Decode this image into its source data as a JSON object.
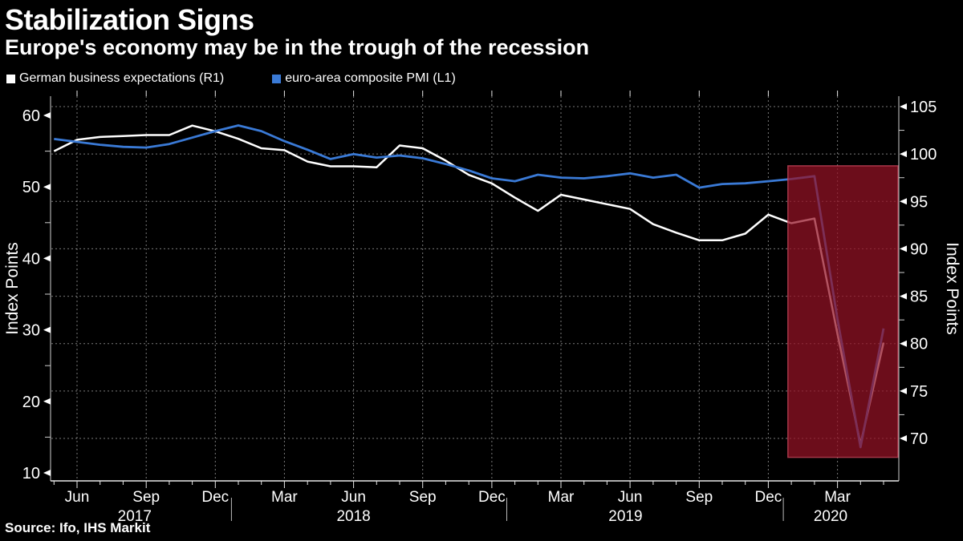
{
  "header": {
    "title": "Stabilization Signs",
    "subtitle": "Europe's economy may be in the trough of the recession"
  },
  "legend": {
    "items": [
      {
        "label": "German business expectations (R1)",
        "color": "#FFFFFF"
      },
      {
        "label": "euro-area composite PMI (L1)",
        "color": "#3A7AD6"
      }
    ]
  },
  "source": {
    "text": "Source: Ifo, IHS Markit"
  },
  "chart_data": {
    "type": "line",
    "x": [
      "May 2017",
      "Jun 2017",
      "Jul 2017",
      "Aug 2017",
      "Sep 2017",
      "Oct 2017",
      "Nov 2017",
      "Dec 2017",
      "Jan 2018",
      "Feb 2018",
      "Mar 2018",
      "Apr 2018",
      "May 2018",
      "Jun 2018",
      "Jul 2018",
      "Aug 2018",
      "Sep 2018",
      "Oct 2018",
      "Nov 2018",
      "Dec 2018",
      "Jan 2019",
      "Feb 2019",
      "Mar 2019",
      "Apr 2019",
      "May 2019",
      "Jun 2019",
      "Jul 2019",
      "Aug 2019",
      "Sep 2019",
      "Oct 2019",
      "Nov 2019",
      "Dec 2019",
      "Jan 2020",
      "Feb 2020",
      "Mar 2020",
      "Apr 2020",
      "May 2020"
    ],
    "series": [
      {
        "name": "German business expectations",
        "axis_code": "R1",
        "axis": "right",
        "color": "#FFFFFF",
        "values": [
          100.3,
          101.5,
          101.8,
          101.9,
          102,
          102,
          103,
          102.4,
          101.6,
          100.6,
          100.4,
          99.2,
          98.7,
          98.7,
          98.6,
          100.9,
          100.6,
          99.3,
          97.8,
          96.9,
          95.4,
          94,
          95.7,
          95.2,
          94.7,
          94.2,
          92.6,
          91.7,
          90.9,
          90.9,
          91.6,
          93.6,
          92.7,
          93.2,
          81,
          69.4,
          80.1
        ]
      },
      {
        "name": "euro-area composite PMI",
        "axis_code": "L1",
        "axis": "left",
        "color": "#3A7AD6",
        "values": [
          56.7,
          56.3,
          55.9,
          55.6,
          55.5,
          56,
          56.9,
          57.8,
          58.6,
          57.8,
          56.4,
          55.2,
          53.9,
          54.6,
          54.1,
          54.4,
          54,
          53.2,
          52.3,
          51.2,
          50.8,
          51.7,
          51.3,
          51.2,
          51.5,
          51.9,
          51.3,
          51.7,
          49.9,
          50.4,
          50.5,
          50.8,
          51.1,
          51.5,
          31.5,
          13.6,
          30.2
        ]
      }
    ],
    "left_axis": {
      "title": "Index Points",
      "major_ticks": [
        10,
        20,
        30,
        40,
        50,
        60
      ],
      "minor_ticks": [
        15,
        25,
        35,
        45,
        55
      ]
    },
    "right_axis": {
      "title": "Index Points",
      "major_ticks": [
        70,
        75,
        80,
        85,
        90,
        95,
        100,
        105
      ],
      "minor_ticks": [
        72.5,
        77.5,
        82.5,
        87.5,
        92.5,
        97.5,
        102.5
      ]
    },
    "x_axis": {
      "quarter_tick_indices": [
        1,
        4,
        7,
        10,
        13,
        16,
        19,
        22,
        25,
        28,
        31,
        34
      ],
      "quarter_tick_labels": [
        "Jun",
        "Sep",
        "Dec",
        "Mar",
        "Jun",
        "Sep",
        "Dec",
        "Mar",
        "Jun",
        "Sep",
        "Dec",
        "Mar"
      ],
      "year_labels": [
        {
          "label": "2017",
          "center_index": 3.5
        },
        {
          "label": "2018",
          "center_index": 13
        },
        {
          "label": "2019",
          "center_index": 24.8
        },
        {
          "label": "2020",
          "center_index": 33.7
        }
      ]
    },
    "highlight_region": {
      "name": "2020-recession-highlight",
      "from": "Jan 2020",
      "to": "May 2020",
      "fill": "#961226",
      "fill_opacity": 0.72,
      "border": "#C04458"
    },
    "grid": {
      "h_gridlines_at_right_axis_values": [
        70,
        75,
        80,
        85,
        90,
        95,
        100,
        105
      ],
      "v_gridlines_at_quarter_ticks": true
    }
  }
}
